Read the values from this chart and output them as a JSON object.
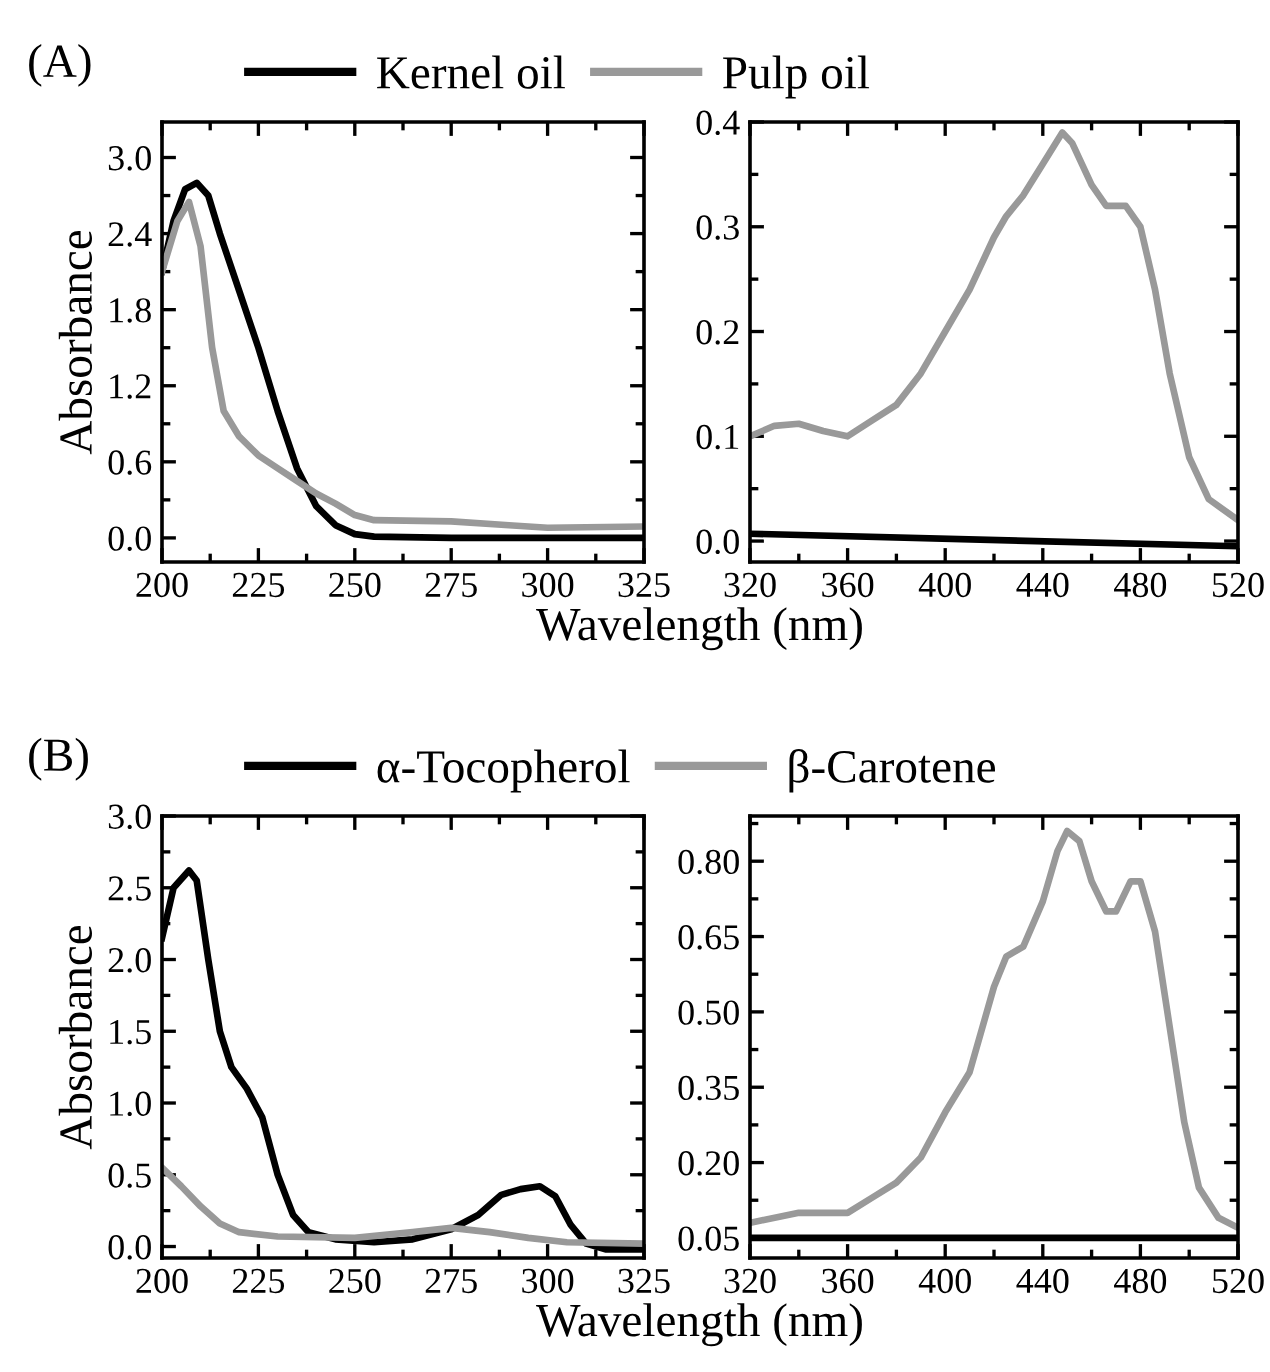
{
  "chart_data": [
    {
      "type": "line",
      "title": "(A)",
      "xlabel": "Wavelength (nm)",
      "ylabel": "Absorbance",
      "xlim": [
        200,
        325
      ],
      "xticks": [
        200,
        225,
        250,
        275,
        300,
        325
      ],
      "ylim": [
        -0.19,
        3.28
      ],
      "yticks": [
        {
          "value": 0,
          "label": "0.0"
        },
        0.6,
        1.2,
        1.8,
        2.4,
        {
          "value": 3,
          "label": "3.0"
        }
      ],
      "legend": "top",
      "grid": false,
      "marker": "none",
      "line_style": "solid",
      "series": [
        {
          "name": "Kernel oil",
          "color": "#000000",
          "x": [
            200,
            203,
            206,
            209,
            212,
            215,
            220,
            225,
            230,
            235,
            240,
            245,
            250,
            255,
            275,
            325
          ],
          "values": [
            2.1,
            2.5,
            2.75,
            2.8,
            2.7,
            2.4,
            1.95,
            1.5,
            1.0,
            0.55,
            0.25,
            0.1,
            0.03,
            0.01,
            0.0,
            0.0
          ]
        },
        {
          "name": "Pulp oil",
          "color": "#999999",
          "x": [
            200,
            204,
            207,
            210,
            213,
            216,
            220,
            225,
            230,
            235,
            240,
            245,
            250,
            255,
            275,
            290,
            300,
            325
          ],
          "values": [
            2.1,
            2.5,
            2.65,
            2.3,
            1.5,
            1.0,
            0.8,
            0.65,
            0.55,
            0.45,
            0.35,
            0.27,
            0.18,
            0.14,
            0.13,
            0.1,
            0.08,
            0.09
          ]
        }
      ]
    },
    {
      "type": "line",
      "xlim": [
        320,
        520
      ],
      "xticks": [
        320,
        360,
        400,
        440,
        480,
        520
      ],
      "ylim": [
        -0.02,
        0.4
      ],
      "yticks": [
        {
          "value": 0,
          "label": "0.0"
        },
        0.1,
        0.2,
        0.3,
        0.4
      ],
      "legend": false,
      "grid": false,
      "marker": "none",
      "line_style": "solid",
      "series": [
        {
          "color": "#000000",
          "x": [
            320,
            520
          ],
          "values": [
            0.007,
            -0.005
          ]
        },
        {
          "color": "#999999",
          "x": [
            320,
            330,
            340,
            350,
            360,
            370,
            380,
            390,
            400,
            410,
            420,
            425,
            432,
            440,
            448,
            452,
            460,
            466,
            474,
            480,
            486,
            492,
            500,
            508,
            520
          ],
          "values": [
            0.1,
            0.11,
            0.112,
            0.105,
            0.1,
            0.115,
            0.13,
            0.16,
            0.2,
            0.24,
            0.29,
            0.31,
            0.33,
            0.36,
            0.39,
            0.38,
            0.34,
            0.32,
            0.32,
            0.3,
            0.24,
            0.16,
            0.08,
            0.04,
            0.02
          ]
        }
      ]
    },
    {
      "type": "line",
      "title": "(B)",
      "xlabel": "Wavelength (nm)",
      "ylabel": "Absorbance",
      "xlim": [
        200,
        325
      ],
      "xticks": [
        200,
        225,
        250,
        275,
        300,
        325
      ],
      "ylim": [
        -0.08,
        3.0
      ],
      "yticks": [
        {
          "value": 0,
          "label": "0.0"
        },
        0.5,
        {
          "value": 1,
          "label": "1.0"
        },
        1.5,
        {
          "value": 2,
          "label": "2.0"
        },
        2.5,
        {
          "value": 3,
          "label": "3.0"
        }
      ],
      "legend": "top",
      "grid": false,
      "marker": "none",
      "line_style": "solid",
      "series": [
        {
          "name": "α-Tocopherol",
          "color": "#000000",
          "x": [
            200,
            203,
            207,
            209,
            212,
            215,
            218,
            222,
            226,
            230,
            234,
            238,
            245,
            255,
            265,
            275,
            282,
            288,
            293,
            298,
            302,
            306,
            310,
            315,
            325
          ],
          "values": [
            2.15,
            2.5,
            2.62,
            2.55,
            2.0,
            1.5,
            1.25,
            1.1,
            0.9,
            0.5,
            0.22,
            0.1,
            0.05,
            0.03,
            0.05,
            0.12,
            0.22,
            0.36,
            0.4,
            0.42,
            0.35,
            0.15,
            0.02,
            -0.02,
            -0.02
          ]
        },
        {
          "name": "β-Carotene",
          "color": "#999999",
          "x": [
            200,
            205,
            210,
            215,
            220,
            230,
            250,
            265,
            275,
            285,
            295,
            305,
            325
          ],
          "values": [
            0.55,
            0.42,
            0.28,
            0.16,
            0.1,
            0.07,
            0.06,
            0.1,
            0.13,
            0.1,
            0.06,
            0.03,
            0.02
          ]
        }
      ]
    },
    {
      "type": "line",
      "xlim": [
        320,
        520
      ],
      "xticks": [
        320,
        360,
        400,
        440,
        480,
        520
      ],
      "ylim": [
        0.01,
        0.89
      ],
      "yticks": [
        0.05,
        {
          "value": 0.2,
          "label": "0.20"
        },
        0.35,
        {
          "value": 0.5,
          "label": "0.50"
        },
        0.65,
        {
          "value": 0.8,
          "label": "0.80"
        }
      ],
      "legend": false,
      "grid": false,
      "marker": "none",
      "line_style": "solid",
      "series": [
        {
          "color": "#000000",
          "x": [
            320,
            520
          ],
          "values": [
            0.05,
            0.05
          ]
        },
        {
          "color": "#999999",
          "x": [
            320,
            340,
            360,
            370,
            380,
            390,
            400,
            410,
            420,
            425,
            432,
            440,
            446,
            450,
            455,
            460,
            466,
            470,
            476,
            480,
            486,
            492,
            498,
            504,
            512,
            520
          ],
          "values": [
            0.08,
            0.1,
            0.1,
            0.13,
            0.16,
            0.21,
            0.3,
            0.38,
            0.55,
            0.61,
            0.63,
            0.72,
            0.82,
            0.86,
            0.84,
            0.76,
            0.7,
            0.7,
            0.76,
            0.76,
            0.66,
            0.47,
            0.28,
            0.15,
            0.09,
            0.07
          ]
        }
      ]
    }
  ]
}
